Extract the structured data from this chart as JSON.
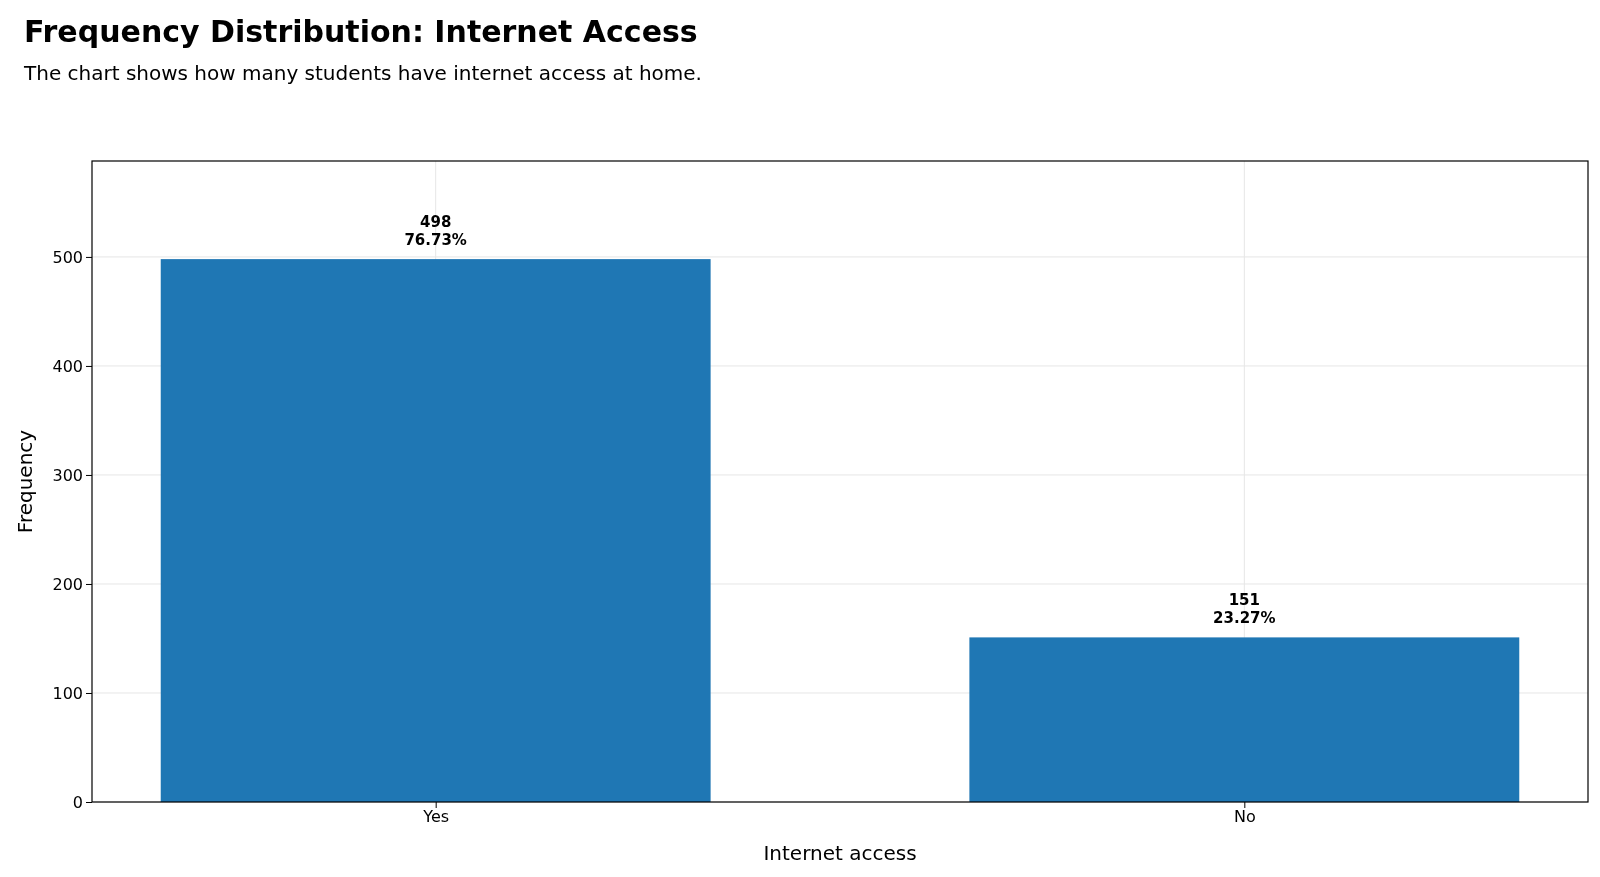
{
  "chart_data": {
    "type": "bar",
    "title": "Frequency Distribution: Internet Access",
    "subtitle": "The chart shows how many students have internet access at home.",
    "xlabel": "Internet access",
    "ylabel": "Frequency",
    "categories": [
      "Yes",
      "No"
    ],
    "values": [
      498,
      151
    ],
    "color": "#1f77b4",
    "value_labels": [
      "498\n76.73%",
      "151\n23.27%"
    ],
    "ylim": [
      0,
      588
    ],
    "yticks": [
      0,
      100,
      200,
      300,
      400,
      500
    ],
    "grid": true
  }
}
